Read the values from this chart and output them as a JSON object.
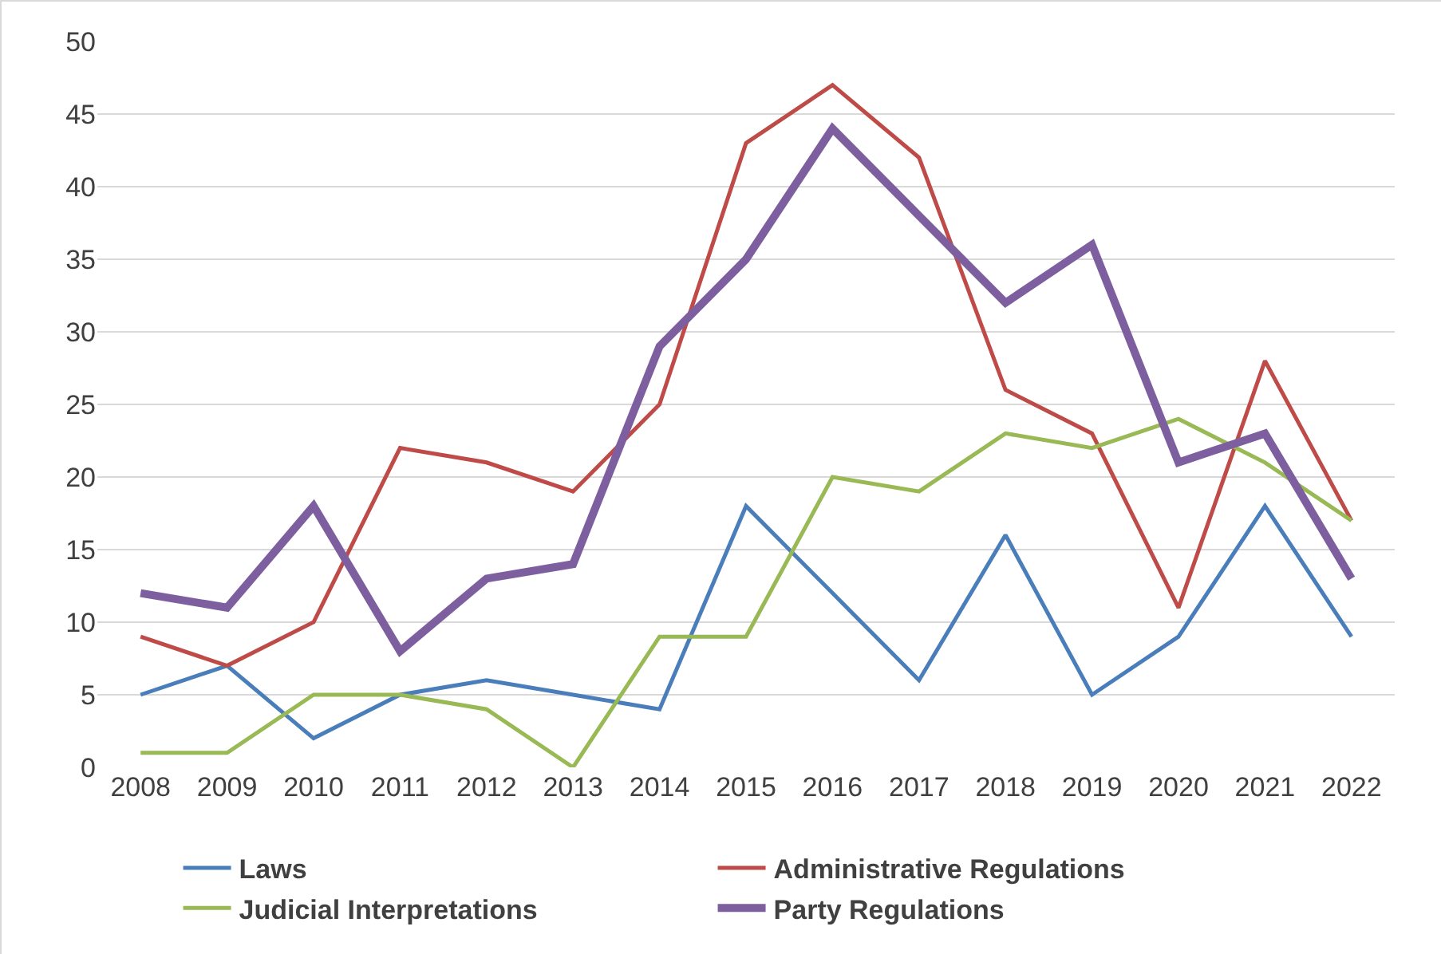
{
  "chart_data": {
    "type": "line",
    "categories": [
      "2008",
      "2009",
      "2010",
      "2011",
      "2012",
      "2013",
      "2014",
      "2015",
      "2016",
      "2017",
      "2018",
      "2019",
      "2020",
      "2021",
      "2022"
    ],
    "series": [
      {
        "name": "Laws",
        "color": "#4a7ebb",
        "values": [
          5,
          7,
          2,
          5,
          6,
          5,
          4,
          18,
          12,
          6,
          16,
          5,
          9,
          18,
          9
        ]
      },
      {
        "name": "Administrative Regulations",
        "color": "#be4b48",
        "values": [
          9,
          7,
          10,
          22,
          21,
          19,
          25,
          43,
          47,
          42,
          26,
          23,
          11,
          28,
          17
        ]
      },
      {
        "name": "Judicial Interpretations",
        "color": "#98b954",
        "values": [
          1,
          1,
          5,
          5,
          4,
          0,
          9,
          9,
          20,
          19,
          23,
          22,
          24,
          21,
          17
        ]
      },
      {
        "name": "Party Regulations",
        "color": "#7d5fa0",
        "values": [
          12,
          11,
          18,
          8,
          13,
          14,
          29,
          35,
          44,
          38,
          32,
          36,
          21,
          23,
          13
        ]
      }
    ],
    "ylim": [
      0,
      50
    ],
    "yticks": [
      0,
      5,
      10,
      15,
      20,
      25,
      30,
      35,
      40,
      45,
      50
    ],
    "grid": "y",
    "legend": "bottom",
    "marker": "none",
    "line_style": "solid"
  }
}
